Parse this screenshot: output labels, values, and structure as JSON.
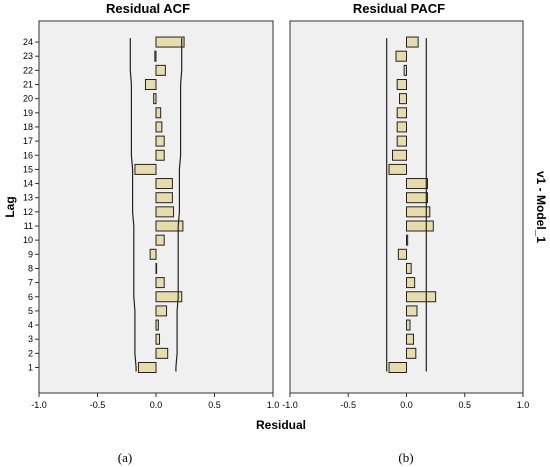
{
  "chart_data": [
    {
      "type": "bar",
      "orientation": "horizontal",
      "title": "Residual ACF",
      "categories": [
        "1",
        "2",
        "3",
        "4",
        "5",
        "6",
        "7",
        "8",
        "9",
        "10",
        "11",
        "12",
        "13",
        "14",
        "15",
        "16",
        "17",
        "18",
        "19",
        "20",
        "21",
        "22",
        "23",
        "24"
      ],
      "values": [
        -0.15,
        0.1,
        0.03,
        0.02,
        0.09,
        0.22,
        0.07,
        0.0,
        -0.05,
        0.07,
        0.23,
        0.15,
        0.14,
        0.14,
        -0.18,
        0.07,
        0.07,
        0.05,
        0.04,
        -0.02,
        -0.09,
        0.08,
        -0.01,
        0.24
      ],
      "confidence_upper": [
        0.17,
        0.18,
        0.18,
        0.18,
        0.18,
        0.19,
        0.19,
        0.19,
        0.19,
        0.19,
        0.19,
        0.2,
        0.2,
        0.2,
        0.2,
        0.21,
        0.21,
        0.21,
        0.21,
        0.21,
        0.21,
        0.22,
        0.22,
        0.22
      ],
      "xlim": [
        -1.0,
        1.0
      ],
      "xticks": [
        "-1.0",
        "-0.5",
        "0.0",
        "0.5",
        "1.0"
      ],
      "bar_color": "#e8dcaa"
    },
    {
      "type": "bar",
      "orientation": "horizontal",
      "title": "Residual PACF",
      "categories": [
        "1",
        "2",
        "3",
        "4",
        "5",
        "6",
        "7",
        "8",
        "9",
        "10",
        "11",
        "12",
        "13",
        "14",
        "15",
        "16",
        "17",
        "18",
        "19",
        "20",
        "21",
        "22",
        "23",
        "24"
      ],
      "values": [
        -0.15,
        0.08,
        0.06,
        0.03,
        0.09,
        0.25,
        0.07,
        0.04,
        -0.07,
        0.01,
        0.23,
        0.2,
        0.18,
        0.18,
        -0.15,
        -0.12,
        -0.08,
        -0.08,
        -0.08,
        -0.06,
        -0.08,
        -0.02,
        -0.09,
        0.1
      ],
      "confidence_upper": [
        0.17,
        0.17,
        0.17,
        0.17,
        0.17,
        0.17,
        0.17,
        0.17,
        0.17,
        0.17,
        0.17,
        0.17,
        0.17,
        0.17,
        0.17,
        0.17,
        0.17,
        0.17,
        0.17,
        0.17,
        0.17,
        0.17,
        0.17,
        0.17
      ],
      "xlim": [
        -1.0,
        1.0
      ],
      "xticks": [
        "-1.0",
        "-0.5",
        "0.0",
        "0.5",
        "1.0"
      ],
      "bar_color": "#e8dcaa"
    }
  ],
  "ylabel": "Lag",
  "xlabel": "Residual",
  "right_label": "v1 - Model_1",
  "captions": [
    "(a)",
    "(b)"
  ]
}
